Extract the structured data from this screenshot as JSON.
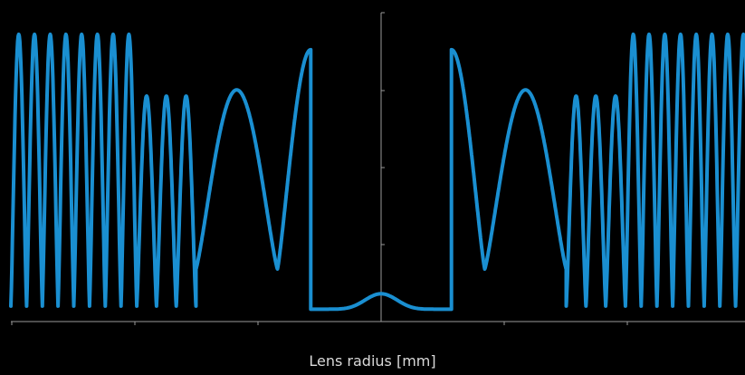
{
  "chart_data": {
    "type": "line",
    "title": "",
    "xlabel": "Lens radius [mm]",
    "ylabel": "",
    "x_tick_labels_visible": false,
    "y_tick_labels_visible": false,
    "grid": false,
    "xlim": [
      -1,
      1
    ],
    "ylim": [
      0,
      1
    ],
    "series": [
      {
        "color": "#1a8fd1",
        "description_of_shape_segments": [
          {
            "x_from": -1.0,
            "x_to": -0.66,
            "peak": 0.93,
            "trough": 0.05,
            "cycles": 8
          },
          {
            "x_from": -0.66,
            "x_to": -0.5,
            "peak": 0.73,
            "trough": 0.05,
            "cycles": 3
          },
          {
            "x_from": -0.5,
            "x_to": -0.28,
            "peak": 0.75,
            "trough": 0.17,
            "cycles": 1
          },
          {
            "x_from": -0.28,
            "x_to": -0.19,
            "peak": 0.88,
            "trough": 0.17,
            "cycles": 0.5
          },
          {
            "x_from": -0.19,
            "x_to": 0.19,
            "peak": 0.09,
            "trough": 0.04,
            "cycles": 1
          }
        ]
      }
    ]
  },
  "colors": {
    "background": "#000000",
    "line": "#1a8fd1",
    "axis": "#9a9a9a"
  }
}
